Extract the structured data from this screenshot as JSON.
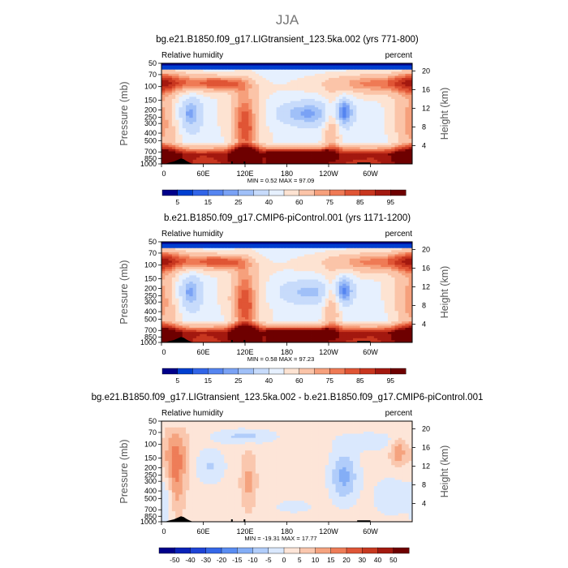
{
  "page_title": "JJA",
  "colors": {
    "seq": [
      "#00008a",
      "#003fd0",
      "#3265e8",
      "#5585f0",
      "#7aa2f5",
      "#a0c0f8",
      "#c7dbfb",
      "#e6f0fe",
      "#fde3d2",
      "#fbc4a8",
      "#f6a07c",
      "#ef7a55",
      "#e05535",
      "#c8361f",
      "#a3180f",
      "#6e0000"
    ],
    "diff": [
      "#00008a",
      "#0a22b8",
      "#1f44d6",
      "#3568e8",
      "#5a8df2",
      "#84aef6",
      "#b1cdfa",
      "#dae8fd",
      "#fde5d8",
      "#fac7ae",
      "#f5a37f",
      "#ee7d58",
      "#df5637",
      "#c73920",
      "#a31a10",
      "#6e0000"
    ]
  },
  "chart_data": [
    {
      "type": "heatmap",
      "title": "bg.e21.B1850.f09_g17.LIGtransient_123.5ka.002 (yrs 771-800)",
      "left_label": "Relative humidity",
      "right_label": "percent",
      "ylabel": "Pressure (mb)",
      "y2label": "Height (km)",
      "x_ticks": [
        "0",
        "60E",
        "120E",
        "180",
        "120W",
        "60W"
      ],
      "y_ticks": [
        "50",
        "70",
        "100",
        "150",
        "200",
        "250",
        "300",
        "400",
        "500",
        "700",
        "850",
        "1000"
      ],
      "y2_ticks": [
        "20",
        "16",
        "12",
        "8",
        "4"
      ],
      "stats": "MIN =    0.52   MAX =   97.09",
      "colorbar_labels": [
        "5",
        "15",
        "25",
        "40",
        "60",
        "75",
        "85",
        "95"
      ],
      "colorbar_levels": [
        5,
        10,
        15,
        20,
        25,
        30,
        40,
        50,
        60,
        70,
        75,
        80,
        85,
        90,
        95
      ],
      "xlim": [
        0,
        360
      ],
      "ylim": [
        1000,
        50
      ]
    },
    {
      "type": "heatmap",
      "title": "b.e21.B1850.f09_g17.CMIP6-piControl.001 (yrs 1171-1200)",
      "left_label": "Relative humidity",
      "right_label": "percent",
      "ylabel": "Pressure (mb)",
      "y2label": "Height (km)",
      "x_ticks": [
        "0",
        "60E",
        "120E",
        "180",
        "120W",
        "60W"
      ],
      "y_ticks": [
        "50",
        "70",
        "100",
        "150",
        "200",
        "250",
        "300",
        "400",
        "500",
        "700",
        "850",
        "1000"
      ],
      "y2_ticks": [
        "20",
        "16",
        "12",
        "8",
        "4"
      ],
      "stats": "MIN =    0.58   MAX =   97.23",
      "colorbar_labels": [
        "5",
        "15",
        "25",
        "40",
        "60",
        "75",
        "85",
        "95"
      ],
      "colorbar_levels": [
        5,
        10,
        15,
        20,
        25,
        30,
        40,
        50,
        60,
        70,
        75,
        80,
        85,
        90,
        95
      ],
      "xlim": [
        0,
        360
      ],
      "ylim": [
        1000,
        50
      ]
    },
    {
      "type": "heatmap",
      "title": "bg.e21.B1850.f09_g17.LIGtransient_123.5ka.002 - b.e21.B1850.f09_g17.CMIP6-piControl.001",
      "left_label": "Relative humidity",
      "right_label": "percent",
      "ylabel": "Pressure (mb)",
      "y2label": "Height (km)",
      "x_ticks": [
        "0",
        "60E",
        "120E",
        "180",
        "120W",
        "60W"
      ],
      "y_ticks": [
        "50",
        "70",
        "100",
        "150",
        "200",
        "250",
        "300",
        "400",
        "500",
        "700",
        "850",
        "1000"
      ],
      "y2_ticks": [
        "20",
        "16",
        "12",
        "8",
        "4"
      ],
      "stats": "MIN =  -19.31   MAX =   17.77",
      "colorbar_labels": [
        "-50",
        "-40",
        "-30",
        "-20",
        "-15",
        "-10",
        "-5",
        "0",
        "5",
        "10",
        "15",
        "20",
        "30",
        "40",
        "50"
      ],
      "colorbar_levels": [
        -50,
        -40,
        -30,
        -20,
        -15,
        -10,
        -5,
        0,
        5,
        10,
        15,
        20,
        30,
        40,
        50
      ],
      "xlim": [
        0,
        360
      ],
      "ylim": [
        1000,
        50
      ]
    }
  ]
}
